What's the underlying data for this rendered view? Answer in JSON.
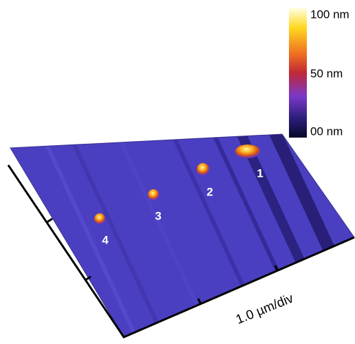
{
  "colorbar": {
    "labels": [
      "100 nm",
      "50 nm",
      "00 nm"
    ]
  },
  "particles": [
    {
      "label": "1"
    },
    {
      "label": "2"
    },
    {
      "label": "3"
    },
    {
      "label": "4"
    }
  ],
  "axis_label": "1.0 µm/div"
}
